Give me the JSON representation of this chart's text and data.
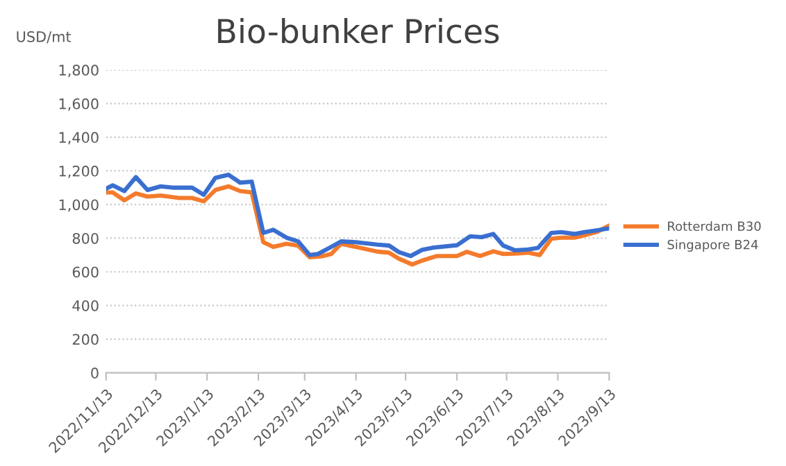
{
  "chart_data": {
    "type": "line",
    "title": "Bio-bunker Prices",
    "ylabel": "USD/mt",
    "xlim": [
      "2022-11-13",
      "2023-09-13"
    ],
    "xticks": [
      {
        "value": "2022-11-13",
        "label": "2022/11/13"
      },
      {
        "value": "2022-12-13",
        "label": "2022/12/13"
      },
      {
        "value": "2023-01-13",
        "label": "2023/1/13"
      },
      {
        "value": "2023-02-13",
        "label": "2023/2/13"
      },
      {
        "value": "2023-03-13",
        "label": "2023/3/13"
      },
      {
        "value": "2023-04-13",
        "label": "2023/4/13"
      },
      {
        "value": "2023-05-13",
        "label": "2023/5/13"
      },
      {
        "value": "2023-06-13",
        "label": "2023/6/13"
      },
      {
        "value": "2023-07-13",
        "label": "2023/7/13"
      },
      {
        "value": "2023-08-13",
        "label": "2023/8/13"
      },
      {
        "value": "2023-09-13",
        "label": "2023/9/13"
      }
    ],
    "ylim": [
      0,
      1800
    ],
    "yticks": [
      0,
      200,
      400,
      600,
      800,
      {
        "value": 1000,
        "label": "1,000"
      },
      {
        "value": 1200,
        "label": "1,200"
      },
      {
        "value": 1400,
        "label": "1,400"
      },
      {
        "value": 1600,
        "label": "1,600"
      },
      {
        "value": 1800,
        "label": "1,800"
      }
    ],
    "grid": "y",
    "legend": "right",
    "marker": "none",
    "line_style": "solid",
    "series": [
      {
        "name": "Rotterdam B30",
        "color": "#f47b2c",
        "x": [
          "2022-11-13",
          "2022-11-17",
          "2022-11-24",
          "2022-12-01",
          "2022-12-08",
          "2022-12-16",
          "2022-12-27",
          "2023-01-04",
          "2023-01-11",
          "2023-01-18",
          "2023-01-26",
          "2023-02-02",
          "2023-02-09",
          "2023-02-16",
          "2023-02-22",
          "2023-03-02",
          "2023-03-09",
          "2023-03-16",
          "2023-03-23",
          "2023-03-29",
          "2023-04-04",
          "2023-04-13",
          "2023-04-26",
          "2023-05-03",
          "2023-05-09",
          "2023-05-17",
          "2023-05-23",
          "2023-06-01",
          "2023-06-13",
          "2023-06-19",
          "2023-06-27",
          "2023-07-05",
          "2023-07-11",
          "2023-07-18",
          "2023-07-26",
          "2023-08-02",
          "2023-08-09",
          "2023-08-15",
          "2023-08-23",
          "2023-08-29",
          "2023-09-06",
          "2023-09-13"
        ],
        "values": [
          1072,
          1072,
          1025,
          1066,
          1047,
          1053,
          1039,
          1039,
          1019,
          1086,
          1108,
          1080,
          1072,
          776,
          748,
          767,
          756,
          687,
          692,
          706,
          767,
          748,
          720,
          714,
          678,
          644,
          667,
          694,
          694,
          719,
          694,
          722,
          706,
          708,
          714,
          700,
          797,
          803,
          803,
          817,
          839,
          875
        ]
      },
      {
        "name": "Singapore B24",
        "color": "#3a6fd0",
        "x": [
          "2022-11-13",
          "2022-11-17",
          "2022-11-24",
          "2022-12-01",
          "2022-12-08",
          "2022-12-16",
          "2022-12-24",
          "2023-01-04",
          "2023-01-11",
          "2023-01-18",
          "2023-01-26",
          "2023-02-02",
          "2023-02-09",
          "2023-02-16",
          "2023-02-22",
          "2023-03-02",
          "2023-03-09",
          "2023-03-16",
          "2023-03-21",
          "2023-03-29",
          "2023-04-04",
          "2023-04-13",
          "2023-04-26",
          "2023-05-03",
          "2023-05-09",
          "2023-05-16",
          "2023-05-23",
          "2023-05-30",
          "2023-06-13",
          "2023-06-21",
          "2023-06-28",
          "2023-07-05",
          "2023-07-11",
          "2023-07-18",
          "2023-07-26",
          "2023-08-01",
          "2023-08-09",
          "2023-08-15",
          "2023-08-23",
          "2023-08-29",
          "2023-09-06",
          "2023-09-13"
        ],
        "values": [
          1094,
          1114,
          1080,
          1163,
          1086,
          1108,
          1100,
          1100,
          1058,
          1158,
          1177,
          1130,
          1136,
          831,
          850,
          803,
          781,
          700,
          706,
          748,
          781,
          776,
          762,
          756,
          717,
          694,
          731,
          744,
          758,
          811,
          806,
          825,
          756,
          728,
          733,
          742,
          831,
          836,
          825,
          836,
          847,
          858
        ]
      }
    ]
  }
}
